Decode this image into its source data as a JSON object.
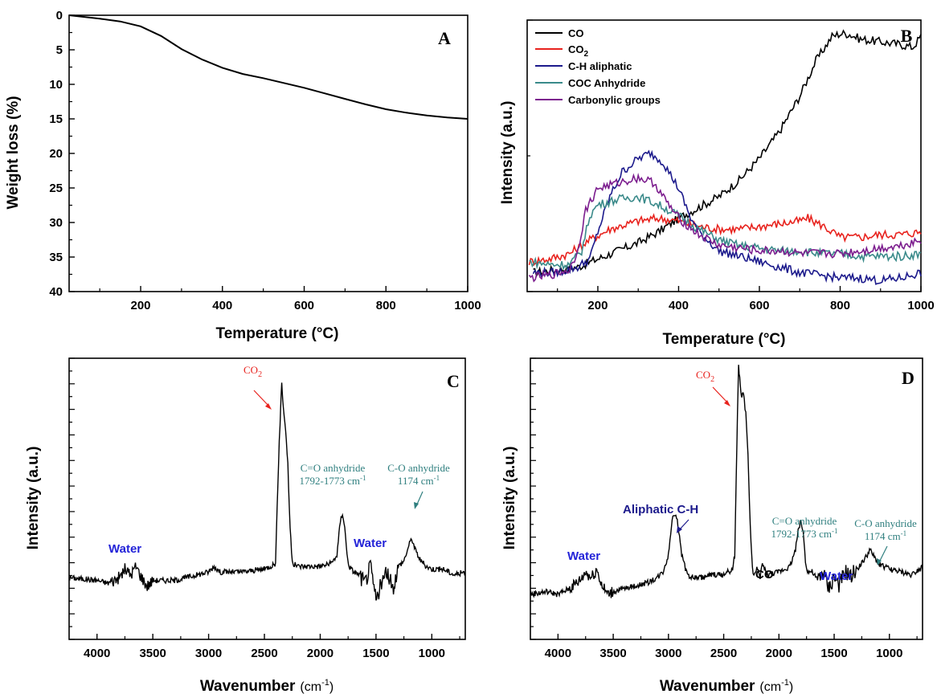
{
  "chart_data": [
    {
      "panel": "A",
      "type": "line",
      "xlabel": "Temperature (°C)",
      "ylabel": "Weight loss (%)",
      "xlim": [
        25,
        1000
      ],
      "ylim": [
        0,
        40
      ],
      "y_inverted": true,
      "x_ticks": [
        200,
        400,
        600,
        800,
        1000
      ],
      "y_ticks": [
        0,
        5,
        10,
        15,
        20,
        25,
        30,
        35,
        40
      ],
      "series": [
        {
          "color": "#000000",
          "x": [
            25,
            100,
            150,
            200,
            250,
            300,
            350,
            400,
            450,
            500,
            550,
            600,
            650,
            700,
            750,
            800,
            850,
            900,
            950,
            1000
          ],
          "values": [
            0.0,
            0.5,
            0.9,
            1.6,
            3.0,
            4.9,
            6.4,
            7.6,
            8.5,
            9.1,
            9.8,
            10.5,
            11.3,
            12.1,
            12.9,
            13.6,
            14.1,
            14.5,
            14.8,
            15.0
          ]
        }
      ]
    },
    {
      "panel": "B",
      "type": "line",
      "xlabel": "Temperature (°C)",
      "ylabel": "Intensity (a.u.)",
      "xlim": [
        25,
        1000
      ],
      "ylim": [
        0,
        100
      ],
      "x_ticks": [
        200,
        400,
        600,
        800,
        1000
      ],
      "legend_position": "top-left",
      "series": [
        {
          "name": "CO",
          "name_sub": "",
          "color": "#000000",
          "x": [
            40,
            100,
            150,
            200,
            250,
            300,
            350,
            400,
            450,
            500,
            550,
            600,
            650,
            700,
            740,
            780,
            800,
            820,
            850,
            900,
            950,
            980,
            1000
          ],
          "values": [
            7,
            8,
            9,
            12,
            15,
            18,
            22,
            27,
            31,
            35,
            41,
            49,
            59,
            72,
            85,
            94,
            95,
            95,
            93,
            92,
            91,
            90,
            94
          ]
        },
        {
          "name": "CO",
          "name_sub": "2",
          "color": "#e8231e",
          "x": [
            30,
            80,
            130,
            180,
            230,
            300,
            350,
            400,
            450,
            500,
            550,
            600,
            650,
            700,
            720,
            760,
            800,
            850,
            900,
            950,
            1000
          ],
          "values": [
            11,
            12,
            14,
            19,
            23,
            26,
            27,
            26,
            24,
            23,
            23,
            24,
            25,
            26,
            27,
            24,
            20,
            20,
            21,
            21,
            22
          ]
        },
        {
          "name": "C-H aliphatic",
          "name_sub": "",
          "color": "#1c1a8c",
          "x": [
            40,
            100,
            150,
            180,
            200,
            230,
            260,
            300,
            330,
            360,
            400,
            430,
            450,
            500,
            550,
            600,
            650,
            700,
            750,
            800,
            850,
            900,
            950,
            1000
          ],
          "values": [
            7,
            7,
            9,
            12,
            22,
            35,
            44,
            49,
            51,
            48,
            38,
            27,
            22,
            15,
            13,
            11,
            9,
            7,
            6,
            5,
            5,
            4,
            5,
            7
          ]
        },
        {
          "name": "COC Anhydride",
          "name_sub": "",
          "color": "#3a8a8a",
          "x": [
            30,
            80,
            130,
            160,
            180,
            200,
            250,
            300,
            350,
            400,
            450,
            500,
            550,
            600,
            650,
            700,
            750,
            800,
            850,
            900,
            950,
            1000
          ],
          "values": [
            11,
            10,
            10,
            15,
            28,
            32,
            34,
            35,
            32,
            28,
            23,
            19,
            17,
            16,
            15,
            15,
            14,
            14,
            13,
            13,
            13,
            14
          ]
        },
        {
          "name": "Carbonylic groups",
          "name_sub": "",
          "color": "#7c1d8e",
          "x": [
            30,
            80,
            130,
            150,
            170,
            200,
            250,
            300,
            340,
            370,
            400,
            450,
            500,
            550,
            600,
            650,
            700,
            750,
            800,
            850,
            900,
            950,
            1000
          ],
          "values": [
            5,
            6,
            8,
            15,
            30,
            38,
            40,
            42,
            40,
            33,
            27,
            21,
            17,
            16,
            15,
            15,
            14,
            14,
            14,
            15,
            16,
            17,
            19
          ]
        }
      ]
    },
    {
      "panel": "C",
      "type": "line",
      "xlabel": "Wavenumber",
      "xlabel_unit": "(cm",
      "xlabel_unit_sup": "-1",
      "xlabel_unit_end": ")",
      "ylabel": "Intensity (a.u.)",
      "xlim": [
        4250,
        700
      ],
      "ylim": [
        0,
        100
      ],
      "x_ticks": [
        4000,
        3500,
        3000,
        2500,
        2000,
        1500,
        1000
      ],
      "annotations": [
        {
          "text": "CO",
          "sub": "2",
          "color": "#e8231e"
        },
        {
          "text": "C=O anhydride",
          "line2": "1792-1773 cm",
          "line2_sup": "-1",
          "color": "#2f7f7f"
        },
        {
          "text": "C-O anhydride",
          "line2": "1174 cm",
          "line2_sup": "-1",
          "color": "#2f7f7f"
        },
        {
          "text": "Water",
          "color": "#2323d8"
        },
        {
          "text": "Water",
          "color": "#2323d8"
        }
      ],
      "series": [
        {
          "color": "#000000",
          "x": [
            4250,
            4000,
            3900,
            3800,
            3750,
            3700,
            3650,
            3600,
            3550,
            3500,
            3300,
            3100,
            3000,
            2950,
            2900,
            2700,
            2500,
            2400,
            2380,
            2360,
            2345,
            2330,
            2310,
            2290,
            2270,
            2250,
            2200,
            2000,
            1900,
            1850,
            1820,
            1800,
            1780,
            1760,
            1740,
            1700,
            1650,
            1600,
            1550,
            1500,
            1450,
            1400,
            1350,
            1300,
            1250,
            1200,
            1180,
            1150,
            1100,
            1050,
            1000,
            900,
            800,
            700
          ],
          "values": [
            22,
            21,
            20,
            22,
            25,
            23,
            26,
            22,
            19,
            21,
            21,
            23,
            24,
            26,
            24,
            24,
            25,
            27,
            55,
            77,
            92,
            82,
            75,
            62,
            40,
            27,
            26,
            26,
            27,
            30,
            42,
            45,
            40,
            30,
            26,
            24,
            23,
            20,
            26,
            14,
            20,
            24,
            18,
            26,
            28,
            34,
            36,
            32,
            28,
            26,
            25,
            25,
            23,
            24
          ]
        }
      ]
    },
    {
      "panel": "D",
      "type": "line",
      "xlabel": "Wavenumber",
      "xlabel_unit": "(cm",
      "xlabel_unit_sup": "-1",
      "xlabel_unit_end": ")",
      "ylabel": "Intensity (a.u.)",
      "xlim": [
        4250,
        700
      ],
      "ylim": [
        0,
        100
      ],
      "x_ticks": [
        4000,
        3500,
        3000,
        2500,
        2000,
        1500,
        1000
      ],
      "annotations": [
        {
          "text": "CO",
          "sub": "2",
          "color": "#e8231e"
        },
        {
          "text": "Aliphatic C-H",
          "color": "#1c1a8c"
        },
        {
          "text": "CO",
          "color": "#000000"
        },
        {
          "text": "C=O anhydride",
          "line2": "1792-1773 cm",
          "line2_sup": "-1",
          "color": "#2f7f7f"
        },
        {
          "text": "C-O anhydride",
          "line2": "1174 cm",
          "line2_sup": "-1",
          "color": "#2f7f7f"
        },
        {
          "text": "Water",
          "color": "#2323d8"
        },
        {
          "text": "Water",
          "color": "#2323d8"
        }
      ],
      "series": [
        {
          "color": "#000000",
          "x": [
            4250,
            4100,
            4000,
            3900,
            3800,
            3750,
            3700,
            3650,
            3600,
            3550,
            3500,
            3400,
            3300,
            3200,
            3100,
            3050,
            3000,
            2980,
            2960,
            2940,
            2920,
            2900,
            2880,
            2860,
            2840,
            2800,
            2700,
            2600,
            2500,
            2420,
            2400,
            2380,
            2365,
            2350,
            2335,
            2320,
            2300,
            2280,
            2260,
            2240,
            2220,
            2200,
            2170,
            2150,
            2120,
            2100,
            2000,
            1900,
            1850,
            1820,
            1800,
            1780,
            1760,
            1740,
            1700,
            1650,
            1600,
            1550,
            1500,
            1450,
            1400,
            1350,
            1300,
            1250,
            1200,
            1180,
            1150,
            1100,
            1000,
            900,
            800,
            700
          ],
          "values": [
            16,
            17,
            16,
            18,
            21,
            24,
            22,
            25,
            19,
            16,
            17,
            18,
            19,
            20,
            22,
            24,
            30,
            38,
            44,
            45,
            43,
            36,
            30,
            28,
            24,
            22,
            22,
            23,
            23,
            25,
            30,
            70,
            98,
            90,
            86,
            88,
            80,
            66,
            40,
            25,
            23,
            25,
            22,
            27,
            24,
            23,
            24,
            26,
            32,
            40,
            42,
            38,
            28,
            24,
            24,
            21,
            24,
            18,
            22,
            19,
            24,
            22,
            25,
            27,
            30,
            32,
            30,
            27,
            25,
            24,
            23,
            26
          ]
        }
      ]
    }
  ],
  "panel_letters": [
    "A",
    "B",
    "C",
    "D"
  ]
}
